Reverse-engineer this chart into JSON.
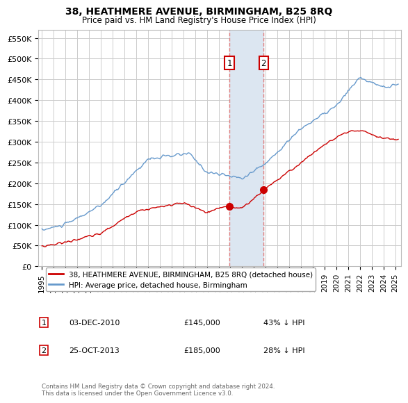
{
  "title": "38, HEATHMERE AVENUE, BIRMINGHAM, B25 8RQ",
  "subtitle": "Price paid vs. HM Land Registry's House Price Index (HPI)",
  "ylabel_ticks": [
    "£0",
    "£50K",
    "£100K",
    "£150K",
    "£200K",
    "£250K",
    "£300K",
    "£350K",
    "£400K",
    "£450K",
    "£500K",
    "£550K"
  ],
  "ytick_values": [
    0,
    50000,
    100000,
    150000,
    200000,
    250000,
    300000,
    350000,
    400000,
    450000,
    500000,
    550000
  ],
  "ylim": [
    0,
    570000
  ],
  "xlim_start": 1994.7,
  "xlim_end": 2025.5,
  "marker1_x": 2010.92,
  "marker1_y": 145000,
  "marker2_x": 2013.82,
  "marker2_y": 185000,
  "marker1_label": "03-DEC-2010",
  "marker1_price": "£145,000",
  "marker1_pct": "43% ↓ HPI",
  "marker2_label": "25-OCT-2013",
  "marker2_price": "£185,000",
  "marker2_pct": "28% ↓ HPI",
  "legend_line1": "38, HEATHMERE AVENUE, BIRMINGHAM, B25 8RQ (detached house)",
  "legend_line2": "HPI: Average price, detached house, Birmingham",
  "footnote": "Contains HM Land Registry data © Crown copyright and database right 2024.\nThis data is licensed under the Open Government Licence v3.0.",
  "red_color": "#cc0000",
  "blue_color": "#6699cc",
  "highlight_color": "#dce6f1",
  "grid_color": "#cccccc",
  "background_color": "#ffffff"
}
